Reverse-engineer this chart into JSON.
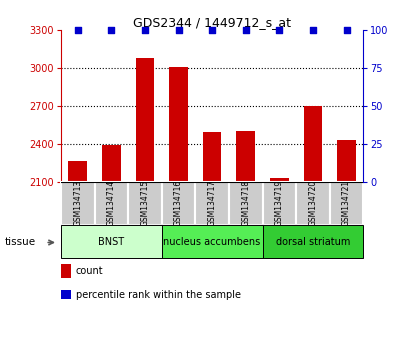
{
  "title": "GDS2344 / 1449712_s_at",
  "samples": [
    "GSM134713",
    "GSM134714",
    "GSM134715",
    "GSM134716",
    "GSM134717",
    "GSM134718",
    "GSM134719",
    "GSM134720",
    "GSM134721"
  ],
  "counts": [
    2260,
    2390,
    3080,
    3010,
    2490,
    2500,
    2130,
    2700,
    2430
  ],
  "percentiles": [
    100,
    100,
    100,
    100,
    100,
    100,
    100,
    100,
    100
  ],
  "ylim_left": [
    2100,
    3300
  ],
  "ylim_right": [
    0,
    100
  ],
  "yticks_left": [
    2100,
    2400,
    2700,
    3000,
    3300
  ],
  "yticks_right": [
    0,
    25,
    50,
    75,
    100
  ],
  "bar_color": "#cc0000",
  "scatter_color": "#0000cc",
  "grid_color": "#000000",
  "tissue_groups": [
    {
      "label": "BNST",
      "start": 0,
      "end": 2,
      "color": "#ccffcc"
    },
    {
      "label": "nucleus accumbens",
      "start": 3,
      "end": 5,
      "color": "#55ee55"
    },
    {
      "label": "dorsal striatum",
      "start": 6,
      "end": 8,
      "color": "#33cc33"
    }
  ],
  "xlabel_tissue": "tissue",
  "legend_count_label": "count",
  "legend_pct_label": "percentile rank within the sample",
  "bar_width": 0.55,
  "background_color": "#ffffff",
  "plot_bg_color": "#ffffff",
  "sample_box_color": "#cccccc"
}
